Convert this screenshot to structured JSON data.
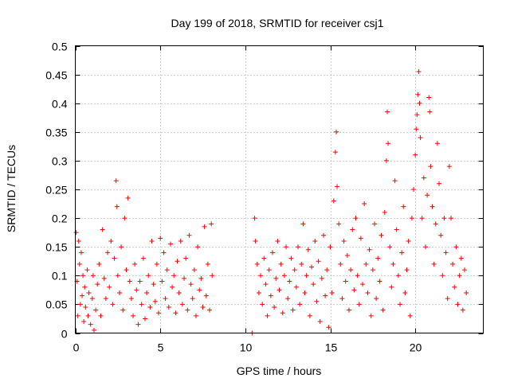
{
  "chart_data": {
    "type": "scatter",
    "title": "Day 199 of 2018, SRMTID for receiver csj1",
    "xlabel": "GPS time / hours",
    "ylabel": "SRMTID / TECUs",
    "xlim": [
      0,
      24
    ],
    "ylim": [
      0,
      0.5
    ],
    "grid": true,
    "xticks": [
      0,
      5,
      10,
      15,
      20
    ],
    "xtick_labels": [
      "0",
      "5",
      "10",
      "15",
      "20"
    ],
    "yticks": [
      0,
      0.05,
      0.1,
      0.15,
      0.2,
      0.25,
      0.3,
      0.35,
      0.4,
      0.45,
      0.5
    ],
    "ytick_labels": [
      "0",
      "0.05",
      "0.1",
      "0.15",
      "0.2",
      "0.25",
      "0.3",
      "0.35",
      "0.4",
      "0.45",
      "0.5"
    ],
    "marker": "+",
    "series_color": "#ff0000",
    "series": [
      {
        "name": "SRMTID",
        "points": [
          [
            0.05,
            0.175
          ],
          [
            0.1,
            0.09
          ],
          [
            0.15,
            0.03
          ],
          [
            0.2,
            0.16
          ],
          [
            0.25,
            0.12
          ],
          [
            0.3,
            0.05
          ],
          [
            0.35,
            0.14
          ],
          [
            0.4,
            0.065
          ],
          [
            0.45,
            0.1
          ],
          [
            0.5,
            0.02
          ],
          [
            0.55,
            0.08
          ],
          [
            0.6,
            0.045
          ],
          [
            0.7,
            0.11
          ],
          [
            0.75,
            0.03
          ],
          [
            0.8,
            0.07
          ],
          [
            0.9,
            0.015
          ],
          [
            1.0,
            0.06
          ],
          [
            1.05,
            0.1
          ],
          [
            1.1,
            0.005
          ],
          [
            1.2,
            0.04
          ],
          [
            1.3,
            0.085
          ],
          [
            1.4,
            0.12
          ],
          [
            1.5,
            0.03
          ],
          [
            1.6,
            0.18
          ],
          [
            1.7,
            0.095
          ],
          [
            1.8,
            0.06
          ],
          [
            1.9,
            0.14
          ],
          [
            2.0,
            0.08
          ],
          [
            2.1,
            0.16
          ],
          [
            2.2,
            0.05
          ],
          [
            2.3,
            0.13
          ],
          [
            2.4,
            0.265
          ],
          [
            2.45,
            0.22
          ],
          [
            2.5,
            0.1
          ],
          [
            2.6,
            0.07
          ],
          [
            2.7,
            0.15
          ],
          [
            2.8,
            0.04
          ],
          [
            2.9,
            0.2
          ],
          [
            3.0,
            0.11
          ],
          [
            3.1,
            0.235
          ],
          [
            3.2,
            0.09
          ],
          [
            3.3,
            0.06
          ],
          [
            3.4,
            0.03
          ],
          [
            3.5,
            0.12
          ],
          [
            3.6,
            0.075
          ],
          [
            3.7,
            0.015
          ],
          [
            3.8,
            0.09
          ],
          [
            3.9,
            0.05
          ],
          [
            4.0,
            0.13
          ],
          [
            4.1,
            0.025
          ],
          [
            4.2,
            0.07
          ],
          [
            4.3,
            0.1
          ],
          [
            4.4,
            0.045
          ],
          [
            4.5,
            0.16
          ],
          [
            4.6,
            0.085
          ],
          [
            4.7,
            0.055
          ],
          [
            4.8,
            0.12
          ],
          [
            4.9,
            0.035
          ],
          [
            5.0,
            0.165
          ],
          [
            5.1,
            0.09
          ],
          [
            5.2,
            0.14
          ],
          [
            5.3,
            0.06
          ],
          [
            5.4,
            0.11
          ],
          [
            5.5,
            0.045
          ],
          [
            5.6,
            0.155
          ],
          [
            5.7,
            0.08
          ],
          [
            5.8,
            0.1
          ],
          [
            5.9,
            0.035
          ],
          [
            6.0,
            0.125
          ],
          [
            6.1,
            0.07
          ],
          [
            6.2,
            0.16
          ],
          [
            6.3,
            0.05
          ],
          [
            6.4,
            0.095
          ],
          [
            6.5,
            0.13
          ],
          [
            6.6,
            0.04
          ],
          [
            6.7,
            0.17
          ],
          [
            6.8,
            0.085
          ],
          [
            6.9,
            0.06
          ],
          [
            7.0,
            0.11
          ],
          [
            7.1,
            0.03
          ],
          [
            7.2,
            0.15
          ],
          [
            7.3,
            0.075
          ],
          [
            7.4,
            0.095
          ],
          [
            7.5,
            0.045
          ],
          [
            7.6,
            0.185
          ],
          [
            7.7,
            0.065
          ],
          [
            7.8,
            0.12
          ],
          [
            7.9,
            0.04
          ],
          [
            8.0,
            0.19
          ],
          [
            8.05,
            0.1
          ],
          [
            10.4,
            0.0
          ],
          [
            10.55,
            0.2
          ],
          [
            10.6,
            0.16
          ],
          [
            10.7,
            0.12
          ],
          [
            10.8,
            0.07
          ],
          [
            10.9,
            0.1
          ],
          [
            11.0,
            0.05
          ],
          [
            11.1,
            0.13
          ],
          [
            11.2,
            0.085
          ],
          [
            11.3,
            0.03
          ],
          [
            11.4,
            0.11
          ],
          [
            11.5,
            0.065
          ],
          [
            11.6,
            0.14
          ],
          [
            11.7,
            0.045
          ],
          [
            11.8,
            0.095
          ],
          [
            11.9,
            0.16
          ],
          [
            12.0,
            0.075
          ],
          [
            12.1,
            0.12
          ],
          [
            12.2,
            0.035
          ],
          [
            12.3,
            0.1
          ],
          [
            12.4,
            0.15
          ],
          [
            12.5,
            0.06
          ],
          [
            12.6,
            0.09
          ],
          [
            12.7,
            0.13
          ],
          [
            12.8,
            0.04
          ],
          [
            12.9,
            0.11
          ],
          [
            13.0,
            0.08
          ],
          [
            13.1,
            0.15
          ],
          [
            13.2,
            0.05
          ],
          [
            13.3,
            0.12
          ],
          [
            13.4,
            0.19
          ],
          [
            13.5,
            0.07
          ],
          [
            13.6,
            0.1
          ],
          [
            13.7,
            0.145
          ],
          [
            13.8,
            0.03
          ],
          [
            13.9,
            0.115
          ],
          [
            14.0,
            0.085
          ],
          [
            14.1,
            0.16
          ],
          [
            14.2,
            0.055
          ],
          [
            14.3,
            0.125
          ],
          [
            14.4,
            0.02
          ],
          [
            14.5,
            0.095
          ],
          [
            14.6,
            0.17
          ],
          [
            14.7,
            0.065
          ],
          [
            14.8,
            0.11
          ],
          [
            14.9,
            0.01
          ],
          [
            15.0,
            0.15
          ],
          [
            15.1,
            0.07
          ],
          [
            15.2,
            0.23
          ],
          [
            15.3,
            0.315
          ],
          [
            15.35,
            0.35
          ],
          [
            15.4,
            0.255
          ],
          [
            15.5,
            0.19
          ],
          [
            15.6,
            0.12
          ],
          [
            15.7,
            0.06
          ],
          [
            15.8,
            0.16
          ],
          [
            15.9,
            0.09
          ],
          [
            16.0,
            0.135
          ],
          [
            16.1,
            0.04
          ],
          [
            16.2,
            0.11
          ],
          [
            16.3,
            0.18
          ],
          [
            16.4,
            0.075
          ],
          [
            16.5,
            0.2
          ],
          [
            16.6,
            0.1
          ],
          [
            16.7,
            0.05
          ],
          [
            16.8,
            0.165
          ],
          [
            16.9,
            0.085
          ],
          [
            17.0,
            0.225
          ],
          [
            17.1,
            0.12
          ],
          [
            17.2,
            0.07
          ],
          [
            17.3,
            0.145
          ],
          [
            17.4,
            0.03
          ],
          [
            17.5,
            0.11
          ],
          [
            17.6,
            0.19
          ],
          [
            17.7,
            0.06
          ],
          [
            17.8,
            0.13
          ],
          [
            17.9,
            0.09
          ],
          [
            18.0,
            0.17
          ],
          [
            18.1,
            0.04
          ],
          [
            18.2,
            0.21
          ],
          [
            18.3,
            0.3
          ],
          [
            18.35,
            0.385
          ],
          [
            18.4,
            0.33
          ],
          [
            18.5,
            0.15
          ],
          [
            18.6,
            0.08
          ],
          [
            18.7,
            0.12
          ],
          [
            18.8,
            0.265
          ],
          [
            18.9,
            0.18
          ],
          [
            19.0,
            0.1
          ],
          [
            19.1,
            0.05
          ],
          [
            19.2,
            0.14
          ],
          [
            19.3,
            0.22
          ],
          [
            19.4,
            0.07
          ],
          [
            19.5,
            0.11
          ],
          [
            19.6,
            0.16
          ],
          [
            19.7,
            0.03
          ],
          [
            19.8,
            0.2
          ],
          [
            19.9,
            0.25
          ],
          [
            20.0,
            0.31
          ],
          [
            20.05,
            0.355
          ],
          [
            20.1,
            0.38
          ],
          [
            20.15,
            0.415
          ],
          [
            20.2,
            0.455
          ],
          [
            20.25,
            0.4
          ],
          [
            20.3,
            0.34
          ],
          [
            20.4,
            0.2
          ],
          [
            20.5,
            0.27
          ],
          [
            20.6,
            0.15
          ],
          [
            20.7,
            0.24
          ],
          [
            20.8,
            0.41
          ],
          [
            20.85,
            0.385
          ],
          [
            20.9,
            0.29
          ],
          [
            21.0,
            0.22
          ],
          [
            21.1,
            0.12
          ],
          [
            21.2,
            0.19
          ],
          [
            21.3,
            0.33
          ],
          [
            21.4,
            0.26
          ],
          [
            21.5,
            0.17
          ],
          [
            21.6,
            0.1
          ],
          [
            21.7,
            0.2
          ],
          [
            21.8,
            0.14
          ],
          [
            21.9,
            0.06
          ],
          [
            22.0,
            0.29
          ],
          [
            22.1,
            0.2
          ],
          [
            22.2,
            0.12
          ],
          [
            22.3,
            0.08
          ],
          [
            22.4,
            0.15
          ],
          [
            22.5,
            0.05
          ],
          [
            22.6,
            0.1
          ],
          [
            22.7,
            0.13
          ],
          [
            22.8,
            0.04
          ],
          [
            22.9,
            0.11
          ],
          [
            23.0,
            0.07
          ]
        ]
      }
    ]
  }
}
